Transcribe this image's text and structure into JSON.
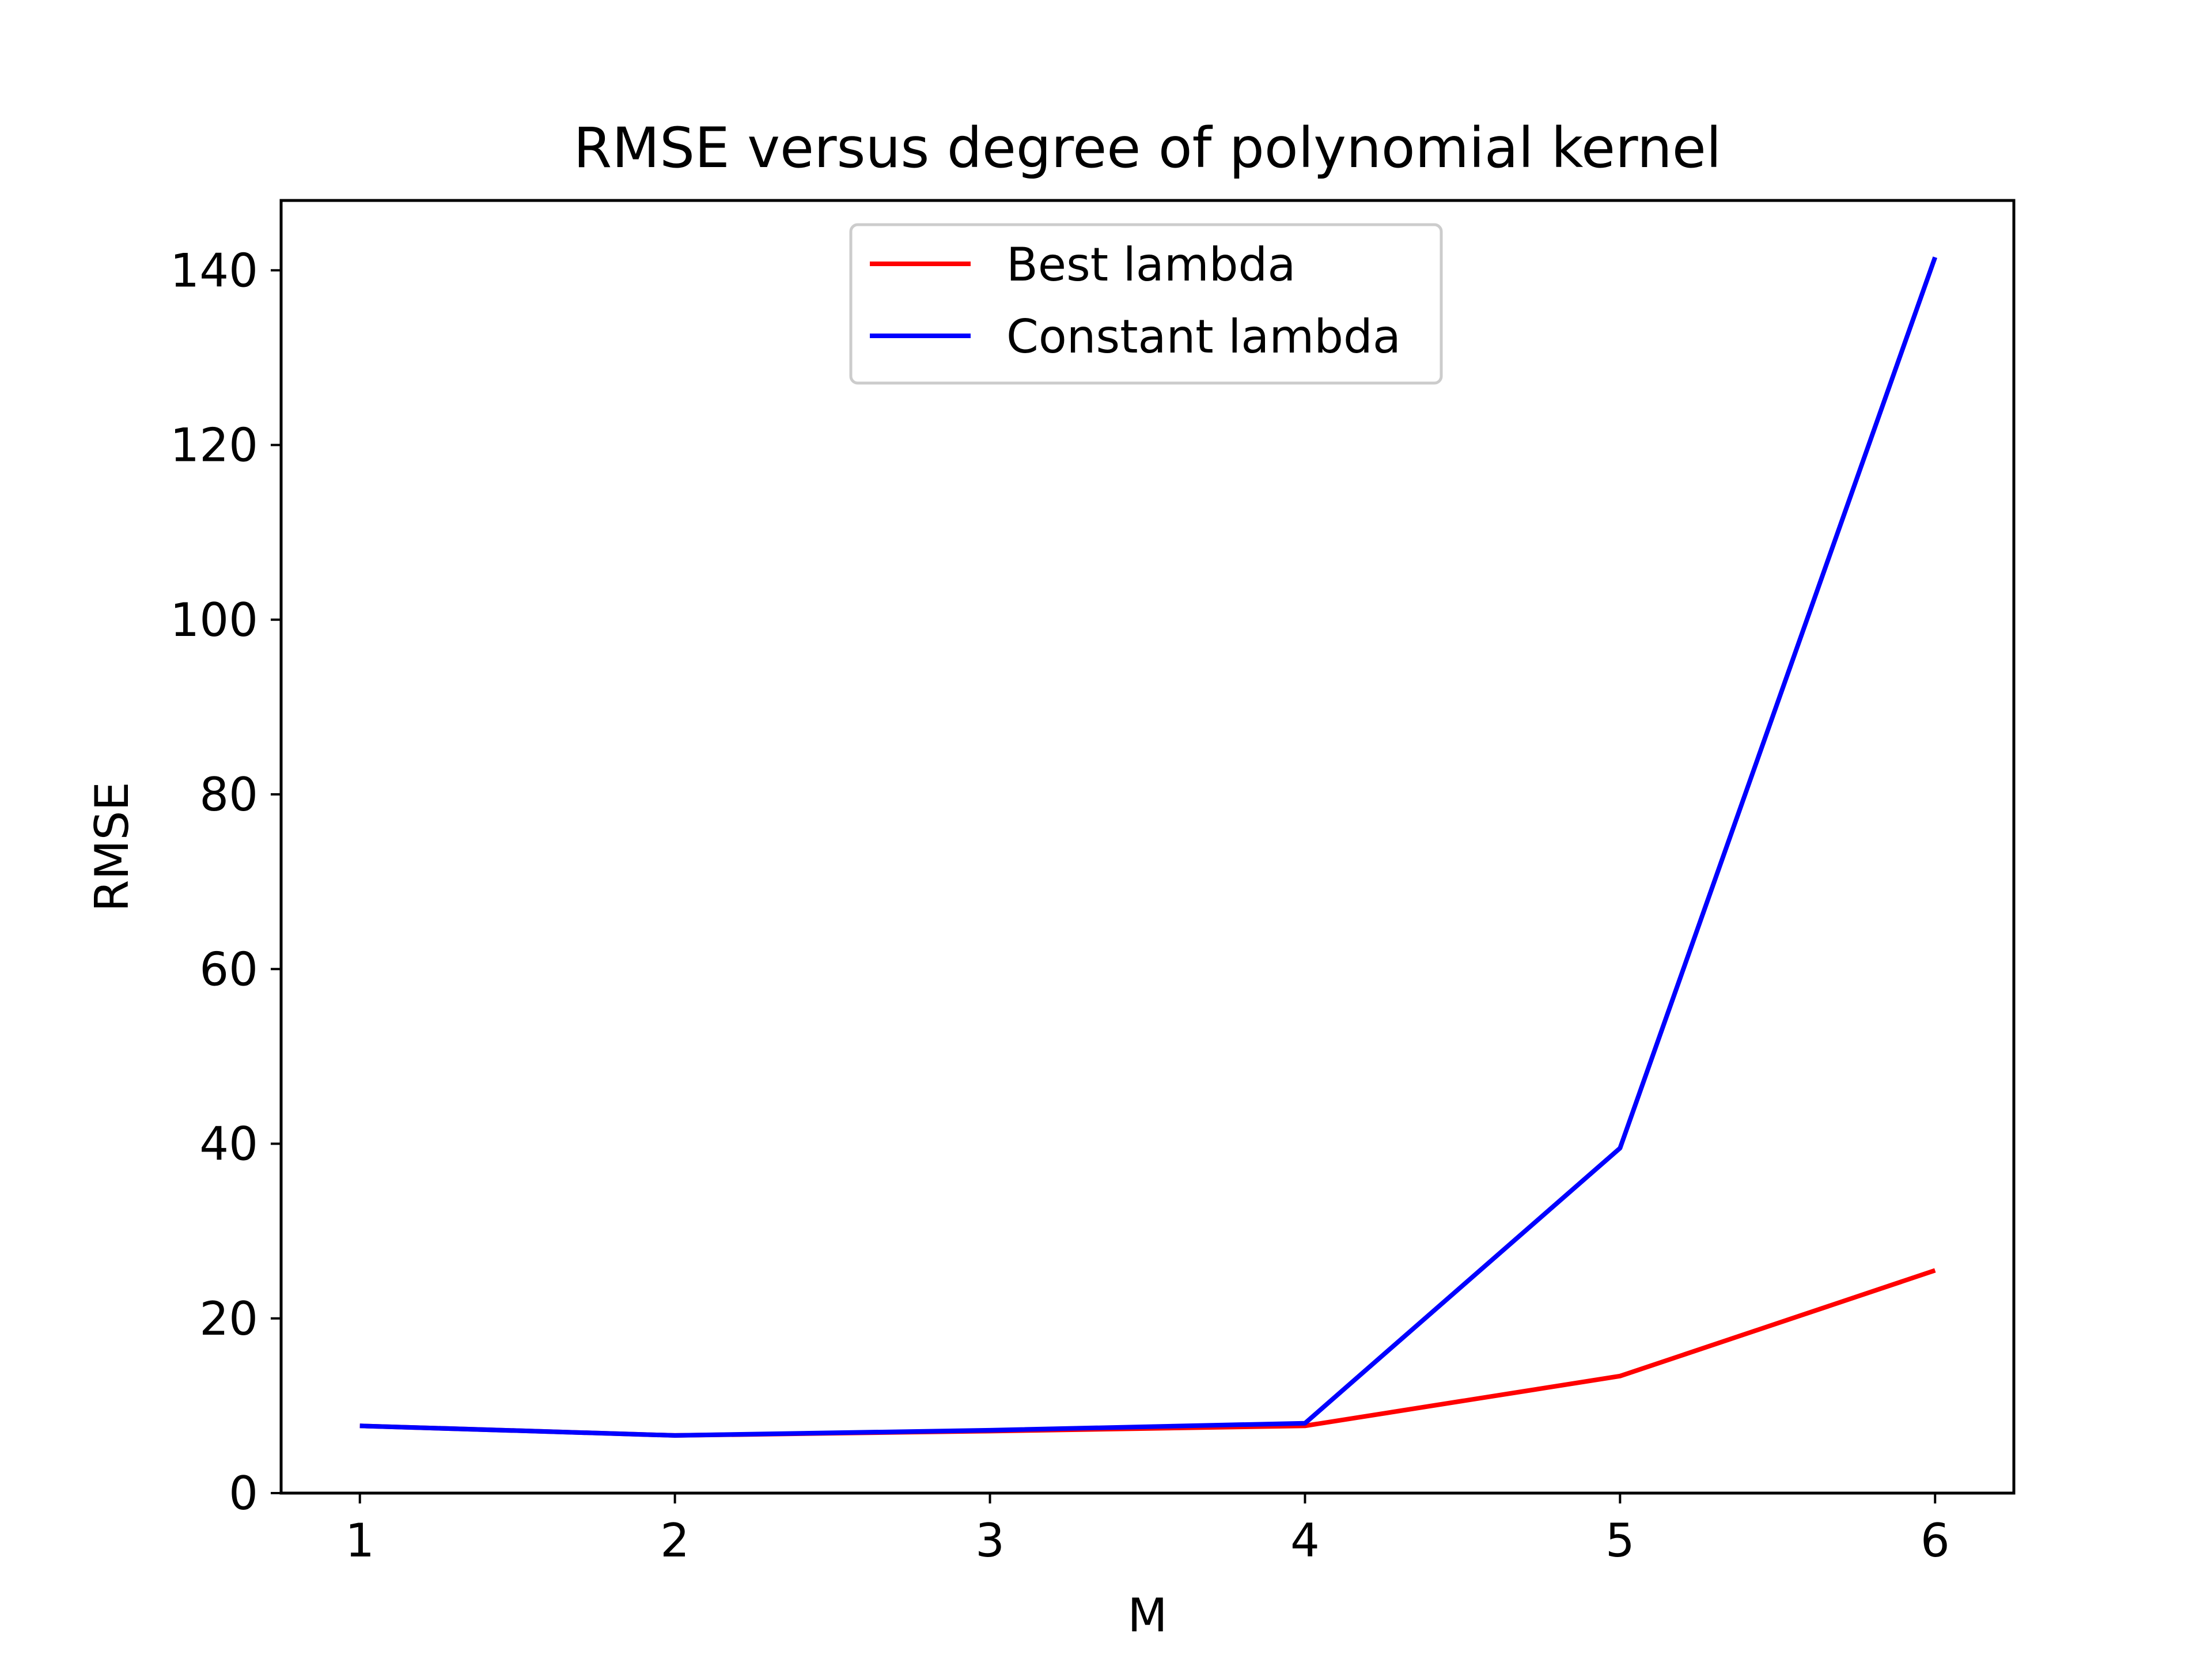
{
  "chart_data": {
    "type": "line",
    "title": "RMSE versus degree of polynomial kernel",
    "xlabel": "M",
    "ylabel": "RMSE",
    "x": [
      1,
      2,
      3,
      4,
      5,
      6
    ],
    "xlim": [
      0.75,
      6.25
    ],
    "ylim": [
      0,
      148
    ],
    "xticks": [
      1,
      2,
      3,
      4,
      5,
      6
    ],
    "yticks": [
      0,
      20,
      40,
      60,
      80,
      100,
      120,
      140
    ],
    "grid": false,
    "legend_position": "top-center",
    "series": [
      {
        "name": "Best lambda",
        "color": "#ff0000",
        "values": [
          7.7,
          6.6,
          7.1,
          7.7,
          13.4,
          25.5
        ]
      },
      {
        "name": "Constant lambda",
        "color": "#0000ff",
        "values": [
          7.7,
          6.6,
          7.2,
          8.0,
          39.5,
          141.5
        ]
      }
    ]
  }
}
